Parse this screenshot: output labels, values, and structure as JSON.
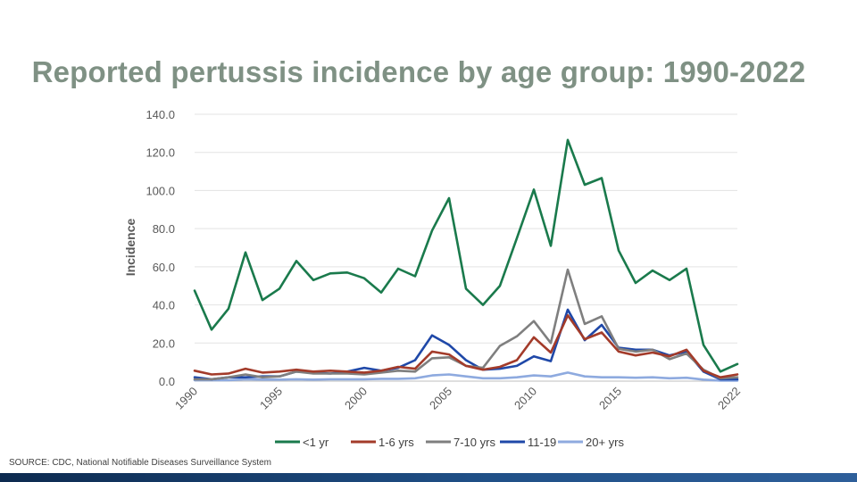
{
  "slide": {
    "title": "Reported pertussis incidence by age group: 1990-2022",
    "source": "SOURCE:  CDC, National Notifiable Diseases Surveillance System"
  },
  "chart_data": {
    "type": "line",
    "title": "Reported pertussis incidence by age group: 1990-2022",
    "ylabel": "Incidence",
    "xlabel": "",
    "ylim": [
      0,
      140
    ],
    "y_ticks": [
      "0.0",
      "20.0",
      "40.0",
      "60.0",
      "80.0",
      "100.0",
      "120.0",
      "140.0"
    ],
    "x_tick_labels": [
      "1990",
      "1995",
      "2000",
      "2005",
      "2010",
      "2015",
      "2022"
    ],
    "x_tick_years": [
      1990,
      1995,
      2000,
      2005,
      2010,
      2015,
      2022
    ],
    "grid": true,
    "legend_position": "bottom",
    "x": [
      1990,
      1991,
      1992,
      1993,
      1994,
      1995,
      1996,
      1997,
      1998,
      1999,
      2000,
      2001,
      2002,
      2003,
      2004,
      2005,
      2006,
      2007,
      2008,
      2009,
      2010,
      2011,
      2012,
      2013,
      2014,
      2015,
      2016,
      2017,
      2018,
      2019,
      2020,
      2021,
      2022
    ],
    "series": [
      {
        "name": "<1 yr",
        "color": "#1a7a4c",
        "values": [
          47.5,
          27,
          38,
          67.5,
          42.5,
          48.5,
          63,
          53,
          56.5,
          57,
          54,
          46.5,
          59,
          55,
          79,
          96,
          48.5,
          40,
          50,
          75,
          100.5,
          71,
          126.5,
          103,
          106.5,
          68.5,
          51.5,
          58,
          53,
          59,
          19,
          5,
          9
        ]
      },
      {
        "name": "1-6 yrs",
        "color": "#a33b2a",
        "values": [
          5.5,
          3.5,
          4,
          6.5,
          4.5,
          5,
          6,
          5,
          5.5,
          5,
          4.5,
          5.5,
          7.5,
          6.5,
          15.5,
          14,
          8,
          6,
          7.5,
          11,
          23,
          15,
          34.5,
          22,
          25.5,
          15.5,
          13.5,
          15,
          13,
          16.5,
          5.5,
          2,
          3.5
        ]
      },
      {
        "name": "7-10 yrs",
        "color": "#7f7f7f",
        "values": [
          1,
          1,
          2,
          3.5,
          2,
          2.5,
          5,
          4,
          4,
          4,
          3.5,
          4.5,
          5.5,
          5,
          12,
          12.5,
          8,
          7,
          18.5,
          23.5,
          31.5,
          20,
          58.5,
          30,
          34,
          17,
          15.5,
          16.5,
          11.5,
          14.5,
          6,
          1.5,
          2
        ]
      },
      {
        "name": "11-19",
        "color": "#1f48a8",
        "values": [
          2,
          1,
          2,
          2,
          2.5,
          2.5,
          5,
          4.5,
          4,
          5,
          7,
          5.5,
          7,
          11,
          24,
          19,
          11,
          6,
          6.5,
          8,
          13,
          10.5,
          37.5,
          21.5,
          29.5,
          17.5,
          16.5,
          16.5,
          13.5,
          15.5,
          5,
          1,
          1
        ]
      },
      {
        "name": "20+ yrs",
        "color": "#8eaadf",
        "values": [
          0.5,
          0.5,
          0.5,
          1,
          0.8,
          0.8,
          1,
          0.8,
          1,
          1,
          1,
          1.2,
          1.2,
          1.5,
          3,
          3.5,
          2.5,
          1.5,
          1.5,
          2,
          3,
          2.5,
          4.5,
          2.5,
          2,
          2,
          1.8,
          2,
          1.5,
          1.8,
          0.8,
          0.3,
          0.3
        ]
      }
    ]
  }
}
